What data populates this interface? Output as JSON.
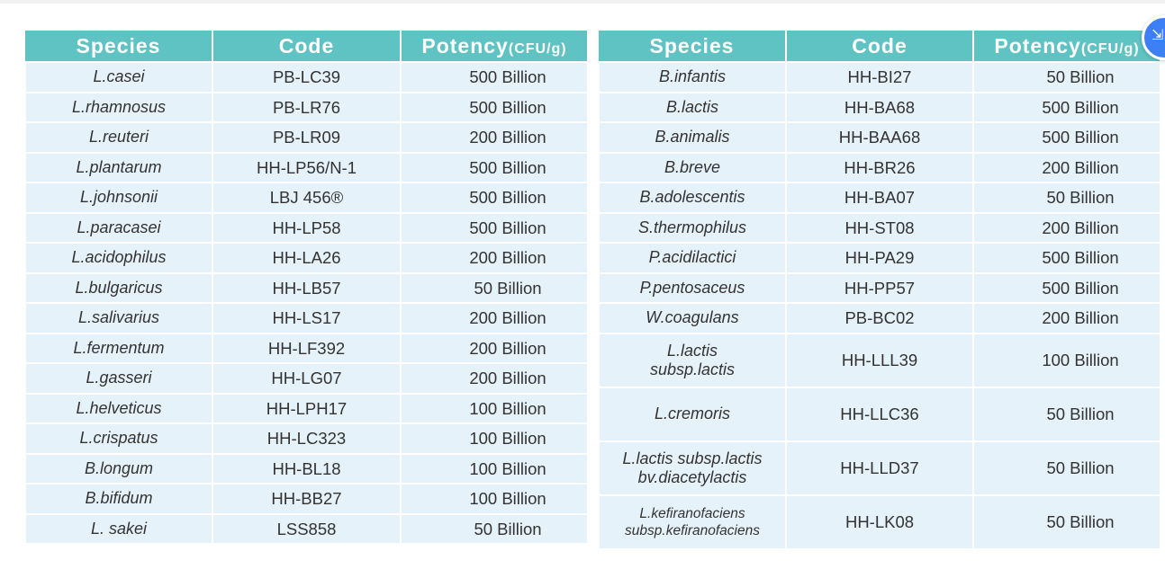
{
  "headers": {
    "species": "Species",
    "code": "Code",
    "potency": "Potency",
    "unit": "(CFU/g)"
  },
  "left": [
    [
      "L.casei",
      "PB-LC39",
      "500 Billion"
    ],
    [
      "L.rhamnosus",
      "PB-LR76",
      "500 Billion"
    ],
    [
      "L.reuteri",
      "PB-LR09",
      "200 Billion"
    ],
    [
      "L.plantarum",
      "HH-LP56/N-1",
      "500 Billion"
    ],
    [
      "L.johnsonii",
      "LBJ 456®",
      "500 Billion"
    ],
    [
      "L.paracasei",
      "HH-LP58",
      "500 Billion"
    ],
    [
      "L.acidophilus",
      "HH-LA26",
      "200 Billion"
    ],
    [
      "L.bulgaricus",
      "HH-LB57",
      "50 Billion"
    ],
    [
      "L.salivarius",
      "HH-LS17",
      "200 Billion"
    ],
    [
      "L.fermentum",
      "HH-LF392",
      "200 Billion"
    ],
    [
      "L.gasseri",
      "HH-LG07",
      "200 Billion"
    ],
    [
      "L.helveticus",
      "HH-LPH17",
      "100 Billion"
    ],
    [
      "L.crispatus",
      "HH-LC323",
      "100 Billion"
    ],
    [
      "B.longum",
      "HH-BL18",
      "100 Billion"
    ],
    [
      "B.bifidum",
      "HH-BB27",
      "100 Billion"
    ],
    [
      "L. sakei",
      "LSS858",
      "50 Billion"
    ]
  ],
  "right": [
    [
      "B.infantis",
      "HH-BI27",
      "50 Billion"
    ],
    [
      "B.lactis",
      "HH-BA68",
      "500 Billion"
    ],
    [
      "B.animalis",
      "HH-BAA68",
      "500 Billion"
    ],
    [
      "B.breve",
      "HH-BR26",
      "200 Billion"
    ],
    [
      "B.adolescentis",
      "HH-BA07",
      "50 Billion"
    ],
    [
      "S.thermophilus",
      "HH-ST08",
      "200 Billion"
    ],
    [
      "P.acidilactici",
      "HH-PA29",
      "500 Billion"
    ],
    [
      "P.pentosaceus",
      "HH-PP57",
      "500 Billion"
    ],
    [
      "W.coagulans",
      "PB-BC02",
      "200 Billion"
    ],
    [
      "L.lactis\nsubsp.lactis",
      "HH-LLL39",
      "100 Billion"
    ],
    [
      "L.cremoris",
      "HH-LLC36",
      "50 Billion"
    ],
    [
      "L.lactis subsp.lactis\nbv.diacetylactis",
      "HH-LLD37",
      "50 Billion"
    ],
    [
      "L.kefiranofaciens\nsubsp.kefiranofaciens",
      "HH-LK08",
      "50 Billion"
    ]
  ],
  "fab_icon": "translate-icon"
}
